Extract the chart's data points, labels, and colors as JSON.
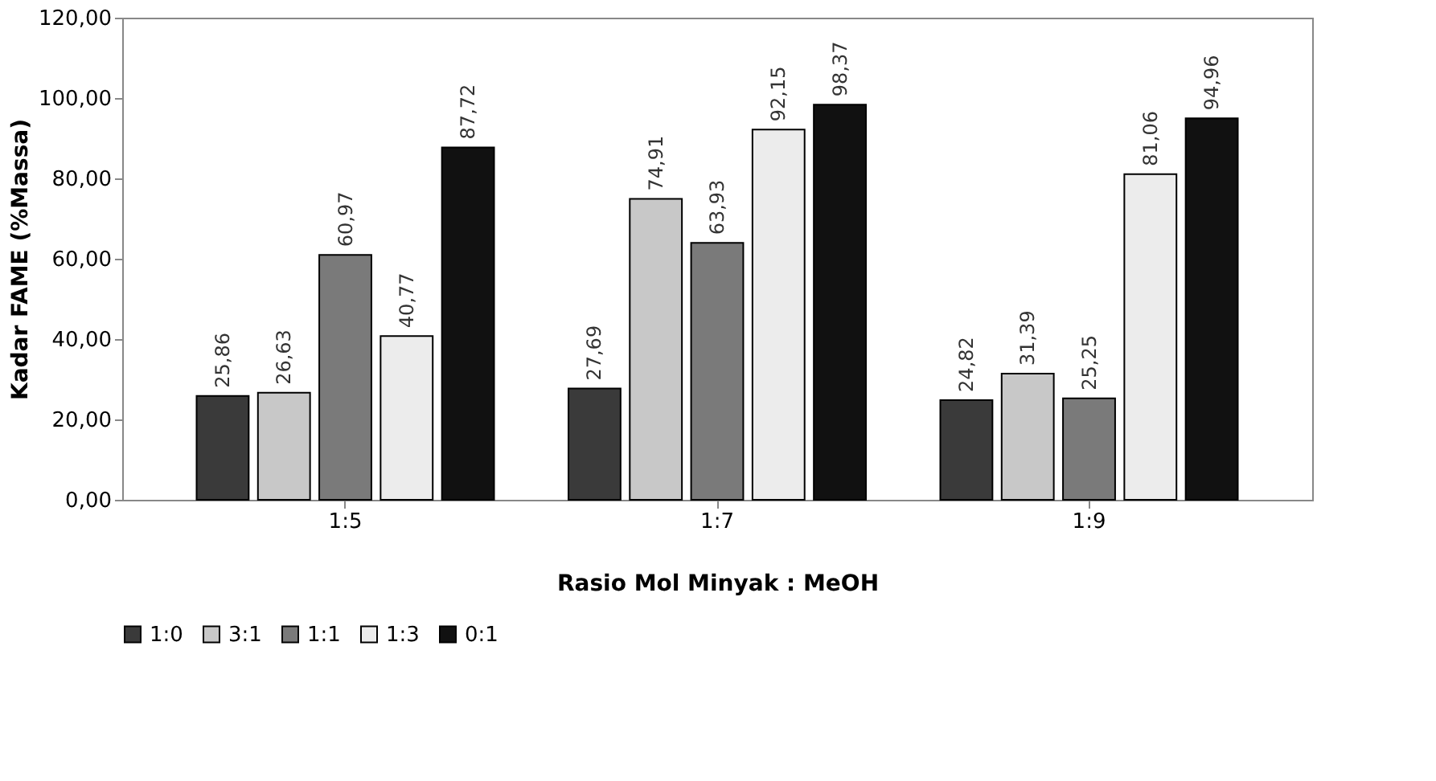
{
  "chart_data": {
    "type": "bar",
    "xlabel": "Rasio Mol Minyak : MeOH",
    "ylabel": "Kadar FAME (%Massa)",
    "categories": [
      "1:5",
      "1:7",
      "1:9"
    ],
    "series": [
      {
        "name": "1:0",
        "color": "#3a3a3a",
        "values": [
          25.86,
          27.69,
          24.82
        ],
        "value_labels": [
          "25,86",
          "27,69",
          "24,82"
        ]
      },
      {
        "name": "3:1",
        "color": "#c8c8c8",
        "values": [
          26.63,
          74.91,
          31.39
        ],
        "value_labels": [
          "26,63",
          "74,91",
          "31,39"
        ]
      },
      {
        "name": "1:1",
        "color": "#7a7a7a",
        "values": [
          60.97,
          63.93,
          25.25
        ],
        "value_labels": [
          "60,97",
          "63,93",
          "25,25"
        ]
      },
      {
        "name": "1:3",
        "color": "#ececec",
        "values": [
          40.77,
          92.15,
          81.06
        ],
        "value_labels": [
          "40,77",
          "92,15",
          "81,06"
        ]
      },
      {
        "name": "0:1",
        "color": "#111111",
        "values": [
          87.72,
          98.37,
          94.96
        ],
        "value_labels": [
          "87,72",
          "98,37",
          "94,96"
        ]
      }
    ],
    "ylim": [
      0,
      120
    ],
    "yticks": [
      {
        "value": 0,
        "label": "0,00"
      },
      {
        "value": 20,
        "label": "20,00"
      },
      {
        "value": 40,
        "label": "40,00"
      },
      {
        "value": 60,
        "label": "60,00"
      },
      {
        "value": 80,
        "label": "80,00"
      },
      {
        "value": 100,
        "label": "100,00"
      },
      {
        "value": 120,
        "label": "120,00"
      }
    ],
    "grid": false,
    "legend": "bottom"
  }
}
